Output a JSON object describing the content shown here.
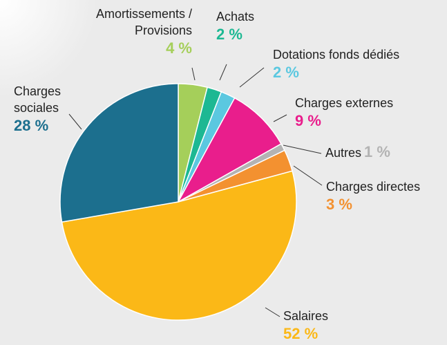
{
  "chart_data": {
    "type": "pie",
    "categories": [
      "Amortissements / Provisions",
      "Achats",
      "Dotations fonds dédiés",
      "Charges externes",
      "Autres",
      "Charges directes",
      "Salaires",
      "Charges sociales"
    ],
    "values": [
      4,
      2,
      2,
      9,
      1,
      3,
      52,
      28
    ],
    "value_labels": [
      "4 %",
      "2 %",
      "2 %",
      "9 %",
      "1 %",
      "3 %",
      "52 %",
      "28 %"
    ],
    "colors": [
      "#a5cf5a",
      "#1db893",
      "#5bc8e0",
      "#e91e8c",
      "#b3b3b3",
      "#f39130",
      "#fbb817",
      "#1c6f8e"
    ]
  }
}
